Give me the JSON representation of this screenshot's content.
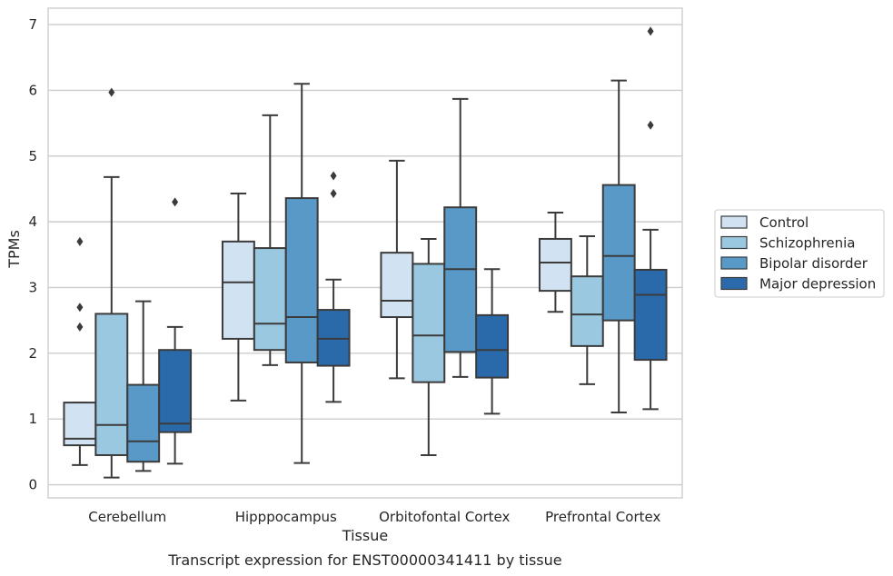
{
  "chart_data": {
    "type": "box",
    "title": "",
    "caption": "Transcript expression for ENST00000341411 by tissue",
    "xlabel": "Tissue",
    "ylabel": "TPMs",
    "ylim": [
      -0.2,
      7.25
    ],
    "yticks": [
      "0",
      "1",
      "2",
      "3",
      "4",
      "5",
      "6",
      "7"
    ],
    "grid": "horizontal",
    "legend_position": "right",
    "categories": [
      "Cerebellum",
      "Hipppocampus",
      "Orbitofontal Cortex",
      "Prefrontal Cortex"
    ],
    "series": [
      {
        "name": "Control",
        "color": "#d1e2f2",
        "boxes": [
          {
            "whisker_low": 0.3,
            "q1": 0.6,
            "median": 0.7,
            "q3": 1.25,
            "whisker_high": 1.25,
            "outliers": [
              2.4,
              2.7,
              3.7
            ]
          },
          {
            "whisker_low": 1.28,
            "q1": 2.22,
            "median": 3.08,
            "q3": 3.7,
            "whisker_high": 4.43,
            "outliers": []
          },
          {
            "whisker_low": 1.62,
            "q1": 2.55,
            "median": 2.8,
            "q3": 3.53,
            "whisker_high": 4.93,
            "outliers": []
          },
          {
            "whisker_low": 2.63,
            "q1": 2.95,
            "median": 3.38,
            "q3": 3.74,
            "whisker_high": 4.14,
            "outliers": []
          }
        ]
      },
      {
        "name": "Schizophrenia",
        "color": "#9ac8e0",
        "boxes": [
          {
            "whisker_low": 0.11,
            "q1": 0.45,
            "median": 0.91,
            "q3": 2.6,
            "whisker_high": 4.68,
            "outliers": [
              5.97
            ]
          },
          {
            "whisker_low": 1.82,
            "q1": 2.05,
            "median": 2.45,
            "q3": 3.6,
            "whisker_high": 5.62,
            "outliers": []
          },
          {
            "whisker_low": 0.45,
            "q1": 1.56,
            "median": 2.27,
            "q3": 3.36,
            "whisker_high": 3.74,
            "outliers": []
          },
          {
            "whisker_low": 1.53,
            "q1": 2.11,
            "median": 2.59,
            "q3": 3.17,
            "whisker_high": 3.78,
            "outliers": []
          }
        ]
      },
      {
        "name": "Bipolar disorder",
        "color": "#5899c8",
        "boxes": [
          {
            "whisker_low": 0.21,
            "q1": 0.35,
            "median": 0.66,
            "q3": 1.52,
            "whisker_high": 2.79,
            "outliers": []
          },
          {
            "whisker_low": 0.33,
            "q1": 1.86,
            "median": 2.55,
            "q3": 4.36,
            "whisker_high": 6.1,
            "outliers": []
          },
          {
            "whisker_low": 1.64,
            "q1": 2.02,
            "median": 3.28,
            "q3": 4.22,
            "whisker_high": 5.87,
            "outliers": []
          },
          {
            "whisker_low": 1.1,
            "q1": 2.5,
            "median": 3.48,
            "q3": 4.56,
            "whisker_high": 6.15,
            "outliers": []
          }
        ]
      },
      {
        "name": "Major depression",
        "color": "#2a6aab",
        "boxes": [
          {
            "whisker_low": 0.32,
            "q1": 0.8,
            "median": 0.93,
            "q3": 2.05,
            "whisker_high": 2.4,
            "outliers": [
              4.3
            ]
          },
          {
            "whisker_low": 1.26,
            "q1": 1.81,
            "median": 2.22,
            "q3": 2.66,
            "whisker_high": 3.12,
            "outliers": [
              4.43,
              4.7
            ]
          },
          {
            "whisker_low": 1.08,
            "q1": 1.63,
            "median": 2.05,
            "q3": 2.58,
            "whisker_high": 3.28,
            "outliers": []
          },
          {
            "whisker_low": 1.15,
            "q1": 1.9,
            "median": 2.89,
            "q3": 3.27,
            "whisker_high": 3.88,
            "outliers": [
              5.47,
              6.9
            ]
          }
        ]
      }
    ]
  }
}
